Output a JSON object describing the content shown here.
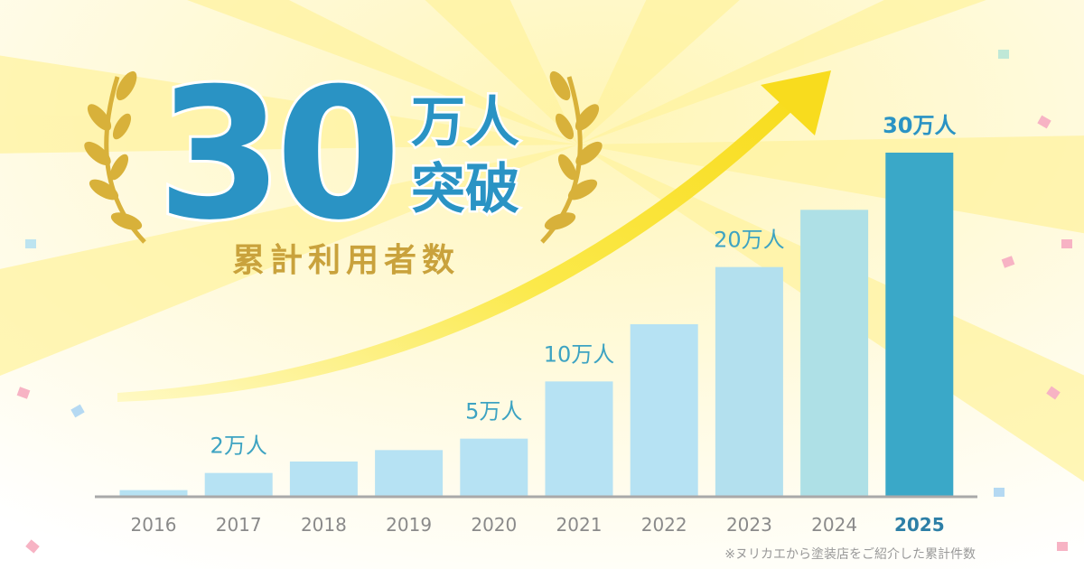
{
  "chart_data": {
    "type": "bar",
    "title": "30",
    "title_unit": "万人",
    "title_suffix": "突破",
    "subtitle": "累計利用者数",
    "note": "※ヌリカエから塗装店をご紹介した累計件数",
    "categories": [
      "2016",
      "2017",
      "2018",
      "2019",
      "2020",
      "2021",
      "2022",
      "2023",
      "2024",
      "2025"
    ],
    "values": [
      0.5,
      2,
      3,
      4,
      5,
      10,
      15,
      20,
      25,
      30
    ],
    "value_labels": [
      null,
      "2万人",
      null,
      null,
      "5万人",
      "10万人",
      null,
      "20万人",
      null,
      "30万人"
    ],
    "colors": [
      "#b6e2f3",
      "#b6e2f3",
      "#b6e2f3",
      "#b6e2f3",
      "#b6e2f3",
      "#b6e2f3",
      "#b6e2f3",
      "#b3e0ee",
      "#aee0e6",
      "#3aa8c8"
    ]
  }
}
